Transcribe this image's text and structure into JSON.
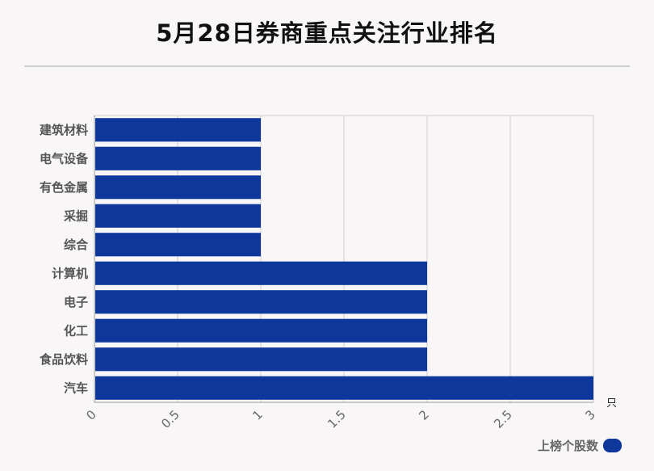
{
  "title": "5月28日券商重点关注行业排名",
  "colors": {
    "bar": "#0d379b",
    "grid": "#cfcfcf",
    "background": "#f9f6f7"
  },
  "chart_data": {
    "type": "bar",
    "orientation": "horizontal",
    "categories": [
      "建筑材料",
      "电气设备",
      "有色金属",
      "采掘",
      "综合",
      "计算机",
      "电子",
      "化工",
      "食品饮料",
      "汽车"
    ],
    "series": [
      {
        "name": "上榜个股数",
        "values": [
          1,
          1,
          1,
          1,
          1,
          2,
          2,
          2,
          2,
          3
        ]
      }
    ],
    "xlim": [
      0,
      3
    ],
    "xticks": [
      "0",
      "0.5",
      "1",
      "1.5",
      "2",
      "2.5",
      "3"
    ],
    "xunit": "只",
    "grid": true,
    "legend": {
      "position": "bottom-right",
      "label": "上榜个股数"
    }
  }
}
